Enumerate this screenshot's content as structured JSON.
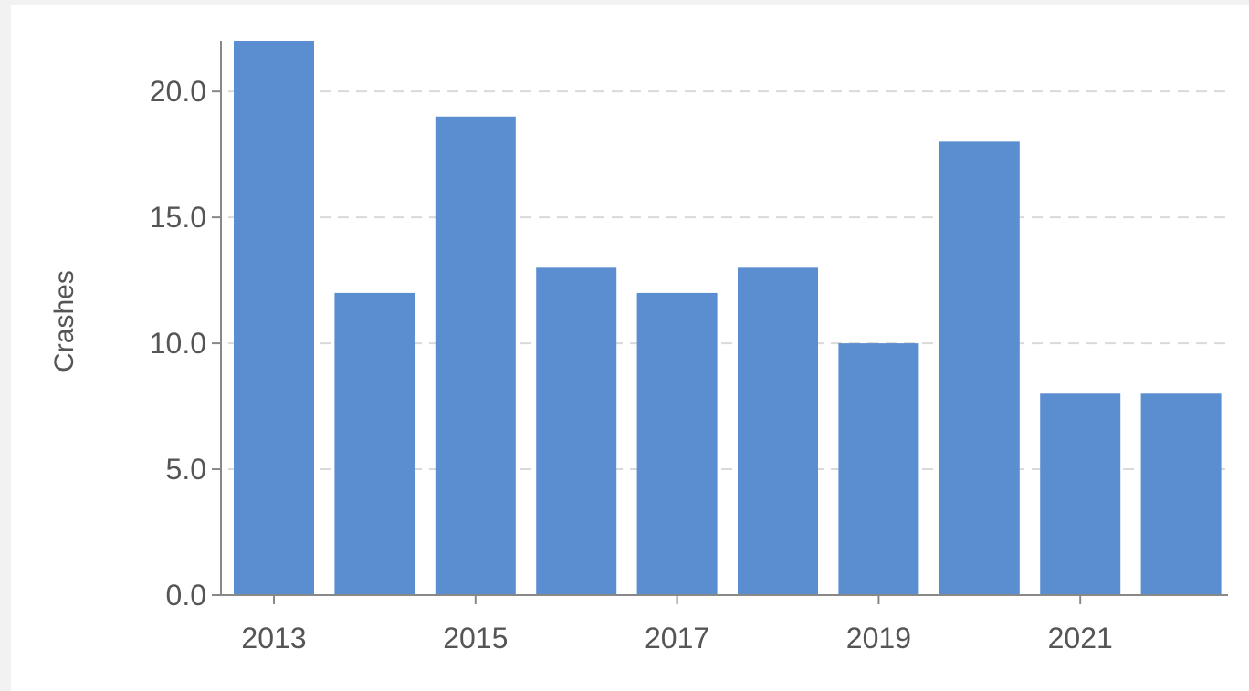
{
  "chart_data": {
    "type": "bar",
    "ylabel": "Crashes",
    "xlabel": "",
    "title": "",
    "categories": [
      "2013",
      "2014",
      "2015",
      "2016",
      "2017",
      "2018",
      "2019",
      "2020",
      "2021",
      "2022"
    ],
    "values": [
      22,
      12,
      19,
      13,
      12,
      13,
      10,
      18,
      8,
      8
    ],
    "ylim": [
      0,
      22
    ],
    "yticks": [
      "0.0",
      "5.0",
      "10.0",
      "15.0",
      "20.0"
    ],
    "xtick_labels": [
      "2013",
      "",
      "2015",
      "",
      "2017",
      "",
      "2019",
      "",
      "2021",
      ""
    ],
    "grid": true,
    "legend": "none",
    "bar_color": "#5b8ed0"
  }
}
